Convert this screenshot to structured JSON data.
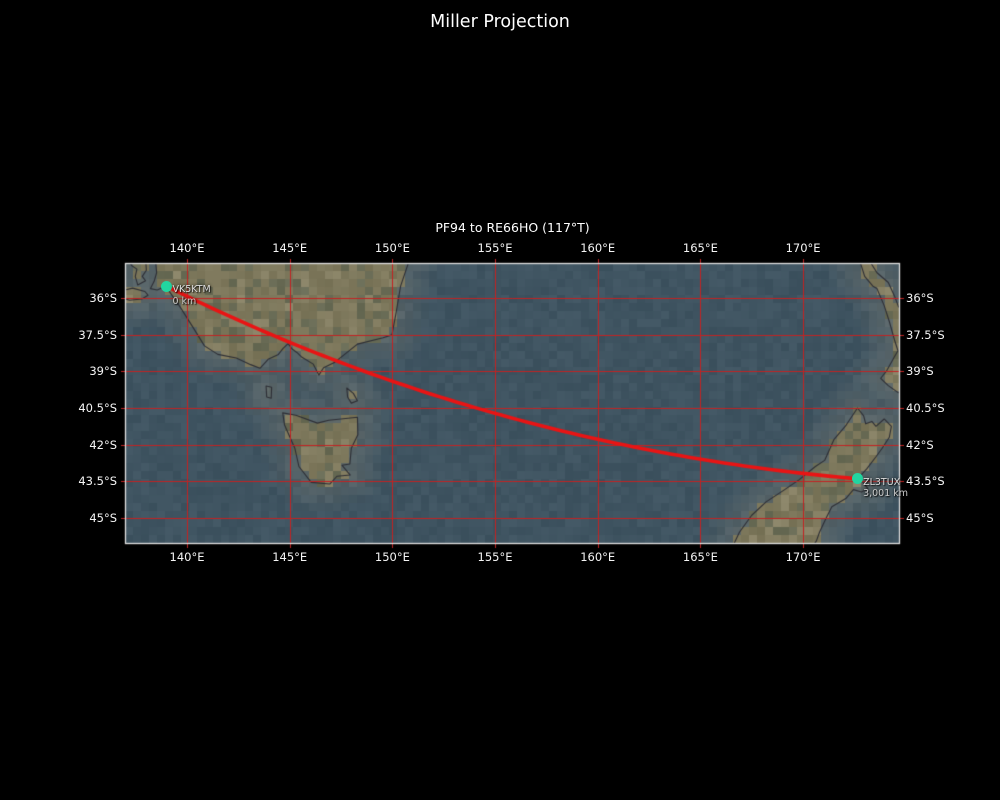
{
  "figure": {
    "title": "Miller Projection"
  },
  "map": {
    "subtitle": "PF94 to RE66HO (117°T)"
  },
  "chart_data": {
    "type": "map",
    "projection": "Miller",
    "extent": {
      "lon_min": 136.98,
      "lon_max": 174.72,
      "lat_min": -46.08,
      "lat_max": -34.55
    },
    "graticule": {
      "lon_ticks": [
        {
          "value": 140,
          "label": "140°E"
        },
        {
          "value": 145,
          "label": "145°E"
        },
        {
          "value": 150,
          "label": "150°E"
        },
        {
          "value": 155,
          "label": "155°E"
        },
        {
          "value": 160,
          "label": "160°E"
        },
        {
          "value": 165,
          "label": "165°E"
        },
        {
          "value": 170,
          "label": "170°E"
        }
      ],
      "lat_ticks": [
        {
          "value": -36,
          "label": "36°S"
        },
        {
          "value": -37.5,
          "label": "37.5°S"
        },
        {
          "value": -39,
          "label": "39°S"
        },
        {
          "value": -40.5,
          "label": "40.5°S"
        },
        {
          "value": -42,
          "label": "42°S"
        },
        {
          "value": -43.5,
          "label": "43.5°S"
        },
        {
          "value": -45,
          "label": "45°S"
        }
      ]
    },
    "route": {
      "label": "PF94 to RE66HO (117°T)",
      "points": [
        {
          "callsign": "VK5KTM",
          "maidenhead": "PF94",
          "lon": 139.0,
          "lat": -35.5,
          "distance_label": "0 km"
        },
        {
          "callsign": "ZL3TUX",
          "maidenhead": "RE66HO",
          "lon": 172.63,
          "lat": -43.4,
          "distance_label": "3,001 km"
        }
      ]
    },
    "land_features": {
      "australia_mainland": [
        [
          138.45,
          -34.3
        ],
        [
          138.52,
          -34.95
        ],
        [
          138.4,
          -35.3
        ],
        [
          138.22,
          -35.6
        ],
        [
          138.55,
          -35.66
        ],
        [
          138.95,
          -35.5
        ],
        [
          139.25,
          -35.85
        ],
        [
          139.7,
          -36.4
        ],
        [
          140.3,
          -37.2
        ],
        [
          140.85,
          -37.95
        ],
        [
          141.5,
          -38.3
        ],
        [
          142.4,
          -38.45
        ],
        [
          143.1,
          -38.72
        ],
        [
          143.55,
          -38.87
        ],
        [
          143.95,
          -38.5
        ],
        [
          144.45,
          -38.3
        ],
        [
          144.68,
          -38.05
        ],
        [
          144.92,
          -37.86
        ],
        [
          145.12,
          -38.08
        ],
        [
          145.35,
          -38.22
        ],
        [
          145.6,
          -38.42
        ],
        [
          146.15,
          -38.7
        ],
        [
          146.42,
          -39.15
        ],
        [
          146.65,
          -38.85
        ],
        [
          147.2,
          -38.62
        ],
        [
          148.3,
          -37.88
        ],
        [
          149.55,
          -37.62
        ],
        [
          149.98,
          -37.5
        ],
        [
          150.18,
          -36.6
        ],
        [
          150.4,
          -35.5
        ],
        [
          150.88,
          -34.3
        ]
      ],
      "yorke_peninsula": [
        [
          137.1,
          -34.3
        ],
        [
          137.98,
          -34.3
        ],
        [
          138.02,
          -34.85
        ],
        [
          137.82,
          -35.1
        ],
        [
          137.98,
          -35.28
        ],
        [
          137.6,
          -35.45
        ],
        [
          137.48,
          -35.1
        ],
        [
          137.56,
          -34.8
        ],
        [
          137.3,
          -34.65
        ]
      ],
      "kangaroo_island": [
        [
          136.7,
          -35.72
        ],
        [
          137.35,
          -35.58
        ],
        [
          137.95,
          -35.72
        ],
        [
          138.1,
          -35.87
        ],
        [
          137.8,
          -36.03
        ],
        [
          137.2,
          -36.08
        ],
        [
          136.7,
          -35.95
        ]
      ],
      "tasmania": [
        [
          144.66,
          -40.7
        ],
        [
          145.3,
          -40.8
        ],
        [
          146.35,
          -41.12
        ],
        [
          146.9,
          -41.0
        ],
        [
          147.5,
          -40.95
        ],
        [
          148.3,
          -40.88
        ],
        [
          148.32,
          -41.6
        ],
        [
          148.0,
          -42.15
        ],
        [
          147.93,
          -42.8
        ],
        [
          147.55,
          -42.85
        ],
        [
          147.95,
          -43.25
        ],
        [
          147.3,
          -43.3
        ],
        [
          146.95,
          -43.62
        ],
        [
          146.05,
          -43.55
        ],
        [
          145.45,
          -42.9
        ],
        [
          145.25,
          -42.15
        ],
        [
          144.75,
          -41.2
        ]
      ],
      "king_island": [
        [
          143.85,
          -39.6
        ],
        [
          144.12,
          -39.65
        ],
        [
          144.1,
          -40.1
        ],
        [
          143.88,
          -40.05
        ]
      ],
      "flinders_island": [
        [
          147.78,
          -39.68
        ],
        [
          148.1,
          -39.9
        ],
        [
          148.3,
          -40.2
        ],
        [
          148.0,
          -40.3
        ],
        [
          147.82,
          -40.05
        ]
      ],
      "nz_south_island": [
        [
          166.45,
          -46.4
        ],
        [
          166.9,
          -45.6
        ],
        [
          167.5,
          -44.9
        ],
        [
          168.2,
          -44.35
        ],
        [
          169.05,
          -43.88
        ],
        [
          169.8,
          -43.45
        ],
        [
          170.6,
          -42.9
        ],
        [
          171.05,
          -42.65
        ],
        [
          171.5,
          -41.8
        ],
        [
          172.1,
          -41.2
        ],
        [
          172.65,
          -40.5
        ],
        [
          172.95,
          -40.82
        ],
        [
          173.05,
          -41.15
        ],
        [
          173.35,
          -41.05
        ],
        [
          173.55,
          -41.25
        ],
        [
          173.95,
          -40.95
        ],
        [
          174.3,
          -41.25
        ],
        [
          174.2,
          -41.7
        ],
        [
          173.85,
          -42.15
        ],
        [
          173.55,
          -42.5
        ],
        [
          173.1,
          -43.0
        ],
        [
          172.72,
          -43.35
        ],
        [
          172.95,
          -43.58
        ],
        [
          173.15,
          -43.8
        ],
        [
          172.85,
          -43.95
        ],
        [
          172.45,
          -43.85
        ],
        [
          172.1,
          -44.2
        ],
        [
          171.4,
          -44.55
        ],
        [
          171.1,
          -45.05
        ],
        [
          170.8,
          -45.6
        ],
        [
          170.65,
          -45.95
        ],
        [
          170.3,
          -46.4
        ]
      ],
      "nz_north_island": [
        [
          172.7,
          -34.3
        ],
        [
          173.0,
          -35.1
        ],
        [
          173.4,
          -35.5
        ],
        [
          173.6,
          -35.6
        ],
        [
          173.95,
          -36.3
        ],
        [
          174.2,
          -36.95
        ],
        [
          174.45,
          -37.7
        ],
        [
          174.62,
          -38.15
        ],
        [
          174.45,
          -38.4
        ],
        [
          174.05,
          -39.0
        ],
        [
          173.78,
          -39.28
        ],
        [
          174.15,
          -39.58
        ],
        [
          174.6,
          -39.85
        ],
        [
          175.1,
          -40.0
        ],
        [
          175.1,
          -36.6
        ],
        [
          174.65,
          -36.35
        ],
        [
          174.45,
          -35.9
        ],
        [
          174.15,
          -35.35
        ],
        [
          173.6,
          -34.95
        ],
        [
          173.3,
          -34.55
        ],
        [
          173.15,
          -34.3
        ]
      ]
    },
    "colors": {
      "background": "#000000",
      "title_text": "#ffffff",
      "tick_label": "#f5f5f5",
      "marker_label": "#dcdcdc",
      "ocean": "#3f5461",
      "ocean_shelf": "#5a6669",
      "land": "#7a7559",
      "land_dark": "#646853",
      "land_light": "#888266",
      "coastline": "#2d2e35",
      "graticule": "#c32222",
      "route": "#e91414",
      "marker": "#22d5a0",
      "map_border": "#e2e2e2"
    }
  }
}
